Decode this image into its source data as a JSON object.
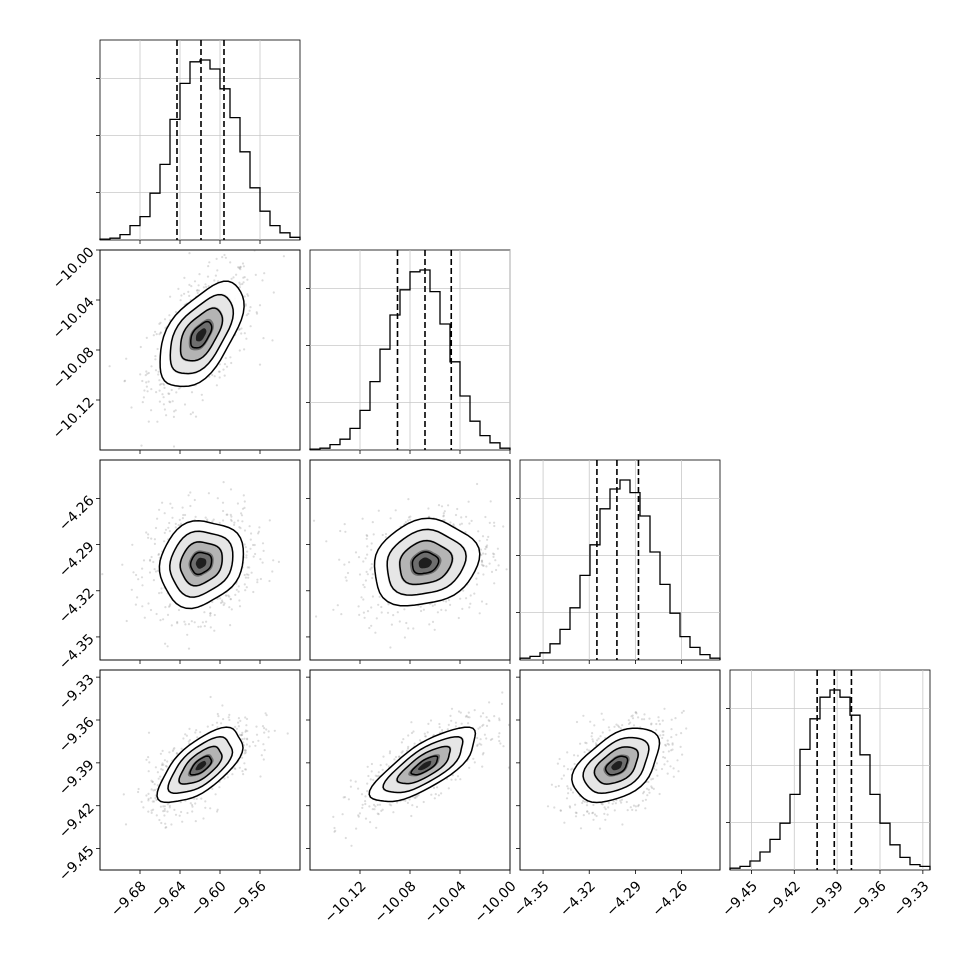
{
  "chart_data": {
    "type": "corner",
    "parameters": 4,
    "axes": [
      {
        "index": 0,
        "range": [
          -9.72,
          -9.52
        ],
        "ticks": [
          "−9.68",
          "−9.64",
          "−9.60",
          "−9.56"
        ],
        "tick_values": [
          -9.68,
          -9.64,
          -9.6,
          -9.56
        ],
        "center": -9.619,
        "sigma": 0.021,
        "quantiles": [
          -9.643,
          -9.619,
          -9.596
        ]
      },
      {
        "index": 1,
        "range": [
          -10.16,
          -10.0
        ],
        "ticks": [
          "−10.12",
          "−10.08",
          "−10.04",
          "−10.00"
        ],
        "tick_values": [
          -10.12,
          -10.08,
          -10.04,
          -10.0
        ],
        "center": -10.068,
        "sigma": 0.021,
        "quantiles": [
          -10.09,
          -10.068,
          -10.047
        ]
      },
      {
        "index": 2,
        "range": [
          -4.365,
          -4.235
        ],
        "ticks": [
          "−4.35",
          "−4.32",
          "−4.29",
          "−4.26"
        ],
        "tick_values": [
          -4.35,
          -4.32,
          -4.29,
          -4.26
        ],
        "center": -4.302,
        "sigma": 0.014,
        "quantiles": [
          -4.315,
          -4.302,
          -4.288
        ]
      },
      {
        "index": 3,
        "range": [
          -9.465,
          -9.325
        ],
        "ticks": [
          "−9.45",
          "−9.42",
          "−9.39",
          "−9.36",
          "−9.33"
        ],
        "tick_values": [
          -9.45,
          -9.42,
          -9.39,
          -9.36,
          -9.33
        ],
        "center": -9.392,
        "sigma": 0.013,
        "quantiles": [
          -9.404,
          -9.392,
          -9.38
        ]
      }
    ],
    "correlations": [
      [
        1,
        0.55,
        0.15,
        0.65
      ],
      [
        0.55,
        1,
        0.15,
        0.75
      ],
      [
        0.15,
        0.15,
        1,
        0.45
      ],
      [
        0.65,
        0.75,
        0.45,
        1
      ]
    ],
    "histograms": [
      [
        0.005,
        0.01,
        0.03,
        0.08,
        0.13,
        0.26,
        0.42,
        0.67,
        0.87,
        0.99,
        1.0,
        0.95,
        0.84,
        0.68,
        0.49,
        0.29,
        0.16,
        0.08,
        0.04,
        0.015
      ],
      [
        0.005,
        0.01,
        0.03,
        0.06,
        0.12,
        0.22,
        0.38,
        0.56,
        0.75,
        0.89,
        0.99,
        1.0,
        0.88,
        0.7,
        0.49,
        0.3,
        0.16,
        0.08,
        0.04,
        0.01
      ],
      [
        0.01,
        0.02,
        0.04,
        0.09,
        0.17,
        0.29,
        0.47,
        0.64,
        0.84,
        0.95,
        1.0,
        0.93,
        0.8,
        0.6,
        0.42,
        0.26,
        0.13,
        0.07,
        0.03,
        0.01
      ],
      [
        0.01,
        0.02,
        0.05,
        0.1,
        0.17,
        0.26,
        0.42,
        0.67,
        0.84,
        0.96,
        1.0,
        0.96,
        0.86,
        0.64,
        0.42,
        0.26,
        0.14,
        0.07,
        0.03,
        0.02
      ]
    ],
    "contour_levels_sigma": [
      0.5,
      1.0,
      1.5,
      2.0
    ],
    "grid": true
  }
}
